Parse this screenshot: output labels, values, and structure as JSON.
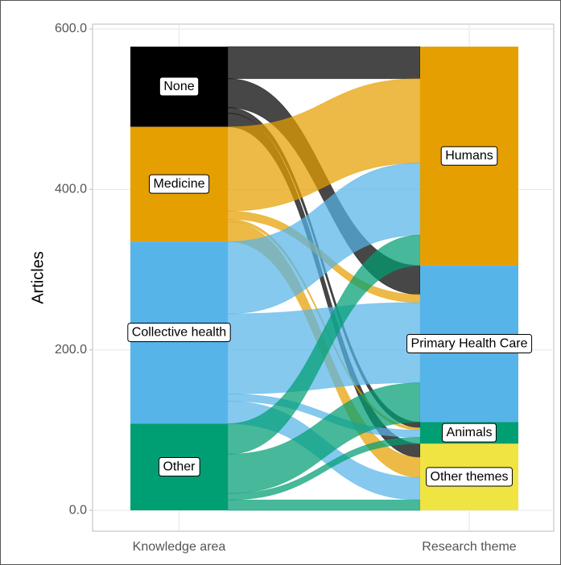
{
  "chart_data": {
    "type": "alluvial",
    "y_label": "Articles",
    "axes": [
      "Knowledge area",
      "Research theme"
    ],
    "left": [
      {
        "name": "None",
        "color": "#000000"
      },
      {
        "name": "Medicine",
        "color": "#E69F00"
      },
      {
        "name": "Collective health",
        "color": "#56B4E9"
      },
      {
        "name": "Other",
        "color": "#009E73"
      }
    ],
    "right": [
      {
        "name": "Humans",
        "color": "#E69F00"
      },
      {
        "name": "Primary Health Care",
        "color": "#56B4E9"
      },
      {
        "name": "Animals",
        "color": "#009E73"
      },
      {
        "name": "Other themes",
        "color": "#F0E442"
      }
    ],
    "flows": [
      {
        "values": [
          40,
          36,
          7,
          17
        ]
      },
      {
        "values": [
          105,
          10,
          3,
          25
        ]
      },
      {
        "values": [
          90,
          100,
          9,
          28
        ]
      },
      {
        "values": [
          38,
          49,
          8,
          13
        ]
      }
    ],
    "ylim": [
      -26,
      606
    ],
    "yticks": [
      {
        "value": 0,
        "label": "0.0"
      },
      {
        "value": 200,
        "label": "200.0"
      },
      {
        "value": 400,
        "label": "400.0"
      },
      {
        "value": 600,
        "label": "600.0"
      }
    ],
    "grid": true
  }
}
